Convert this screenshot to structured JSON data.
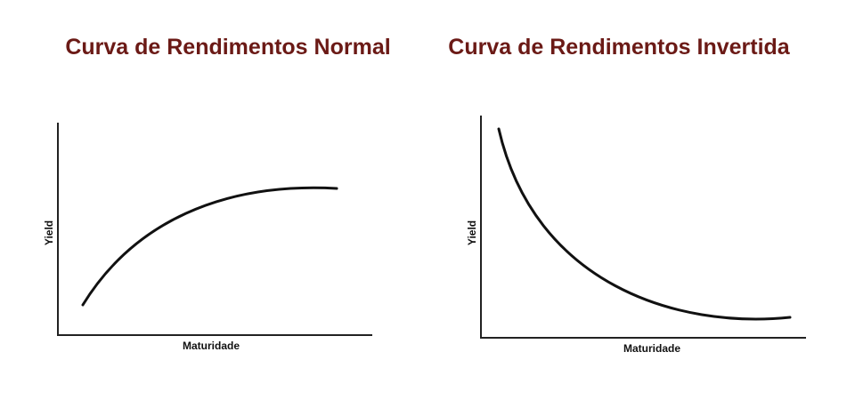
{
  "panels": [
    {
      "title": "Curva de Rendimentos Normal",
      "y_label": "Yield",
      "x_label": "Maturidade"
    },
    {
      "title": "Curva de Rendimentos Invertida",
      "y_label": "Yield",
      "x_label": "Maturidade"
    }
  ]
}
